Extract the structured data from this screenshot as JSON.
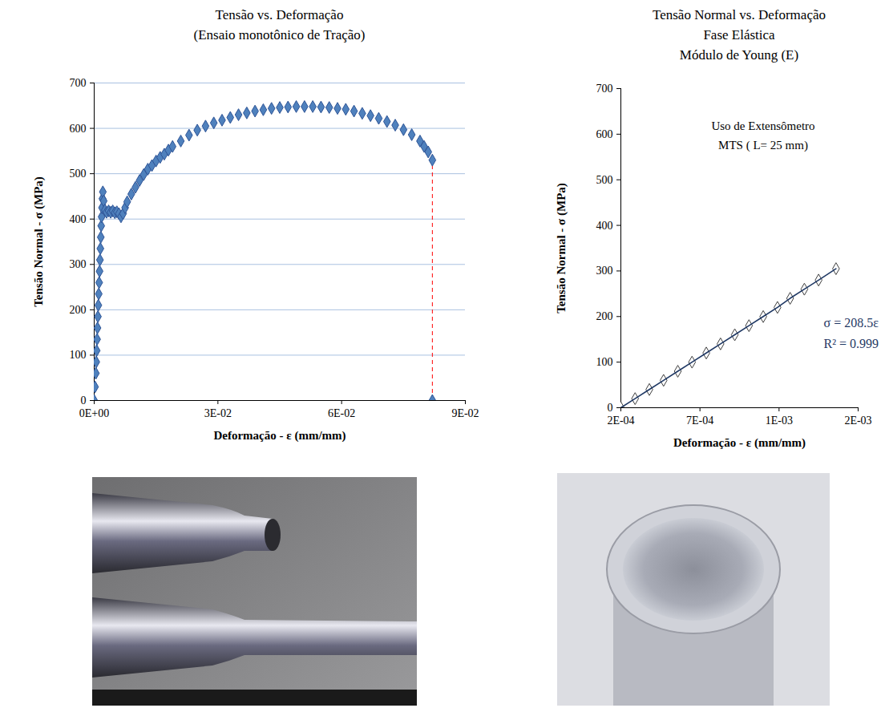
{
  "chart_data": [
    {
      "type": "scatter",
      "title": "Tensão vs. Deformação",
      "subtitle": "(Ensaio monotônico de Tração)",
      "x_label": "Deformação - ε (mm/mm)",
      "y_label": "Tensão Normal - σ (MPa)",
      "marker": "diamond",
      "color": "#4f81bd",
      "grid": true,
      "xlim": [
        0,
        0.09
      ],
      "xticks": [
        {
          "value": 0,
          "label": "0E+00"
        },
        {
          "value": 0.03,
          "label": "3E-02"
        },
        {
          "value": 0.06,
          "label": "6E-02"
        },
        {
          "value": 0.09,
          "label": "9E-02"
        }
      ],
      "ylim": [
        0,
        700
      ],
      "yticks": [
        0,
        100,
        200,
        300,
        400,
        500,
        600,
        700
      ],
      "x": [
        0,
        0.0002,
        0.0004,
        0.0005,
        0.0006,
        0.0007,
        0.0008,
        0.0009,
        0.001,
        0.0011,
        0.0012,
        0.0013,
        0.0014,
        0.0015,
        0.0016,
        0.0017,
        0.0018,
        0.0019,
        0.002,
        0.0021,
        0.0023,
        0.0026,
        0.003,
        0.0035,
        0.004,
        0.0045,
        0.005,
        0.0055,
        0.006,
        0.0065,
        0.007,
        0.0075,
        0.008,
        0.009,
        0.01,
        0.011,
        0.012,
        0.013,
        0.014,
        0.015,
        0.016,
        0.017,
        0.018,
        0.019,
        0.021,
        0.023,
        0.025,
        0.027,
        0.029,
        0.031,
        0.033,
        0.035,
        0.037,
        0.039,
        0.041,
        0.043,
        0.045,
        0.047,
        0.049,
        0.051,
        0.053,
        0.055,
        0.057,
        0.059,
        0.061,
        0.063,
        0.065,
        0.067,
        0.069,
        0.071,
        0.073,
        0.075,
        0.077,
        0.079,
        0.08,
        0.081,
        0.082,
        0.082
      ],
      "y": [
        0,
        30,
        60,
        85,
        110,
        135,
        160,
        185,
        210,
        235,
        260,
        285,
        310,
        335,
        360,
        385,
        405,
        425,
        445,
        460,
        440,
        420,
        415,
        418,
        415,
        418,
        414,
        416,
        412,
        405,
        412,
        425,
        438,
        455,
        470,
        485,
        498,
        510,
        518,
        528,
        536,
        543,
        552,
        560,
        572,
        585,
        596,
        605,
        612,
        618,
        624,
        630,
        634,
        638,
        641,
        644,
        646,
        647,
        648,
        648,
        648,
        647,
        646,
        644,
        642,
        638,
        633,
        628,
        622,
        615,
        607,
        597,
        586,
        572,
        560,
        548,
        530,
        0
      ],
      "fracture_line": {
        "x": 0.082,
        "y1": 0,
        "y2": 530,
        "color": "#ff0000",
        "line_style": "dashed"
      }
    },
    {
      "type": "scatter",
      "title": "Tensão Normal vs. Deformação",
      "subtitle": [
        "Fase Elástica",
        "Módulo de Young (E)"
      ],
      "annotations": [
        "Uso de Extensômetro",
        "MTS  ( L= 25 mm)"
      ],
      "x_label": "Deformação - ε (mm/mm)",
      "y_label": "Tensão Normal - σ (MPa)",
      "marker": "open-diamond",
      "color": "#404040",
      "grid": false,
      "xlim": [
        0.0002,
        0.0017
      ],
      "xticks": [
        {
          "value": 0.0002,
          "label": "2E-04"
        },
        {
          "value": 0.0007,
          "label": "7E-04"
        },
        {
          "value": 0.0012,
          "label": "1E-03"
        },
        {
          "value": 0.0017,
          "label": "2E-03"
        }
      ],
      "ylim": [
        0,
        700
      ],
      "yticks": [
        0,
        100,
        200,
        300,
        400,
        500,
        600,
        700
      ],
      "x": [
        0.0002,
        0.00029,
        0.00038,
        0.00047,
        0.00056,
        0.00065,
        0.00074,
        0.00083,
        0.00092,
        0.00101,
        0.0011,
        0.00119,
        0.00127,
        0.00136,
        0.00145,
        0.00156
      ],
      "y": [
        0,
        20,
        40,
        60,
        80,
        100,
        120,
        140,
        160,
        180,
        200,
        220,
        240,
        260,
        280,
        305
      ],
      "trendline": {
        "equation": "σ = 208.5ε",
        "r2_label": "R² = 0.999",
        "color": "#1f3864",
        "line_style": "solid"
      }
    }
  ]
}
